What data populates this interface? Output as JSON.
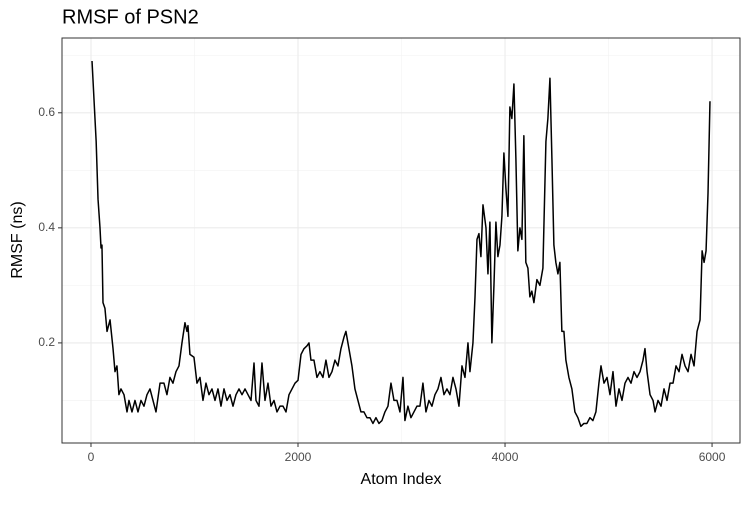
{
  "chart_data": {
    "type": "line",
    "title": "RMSF of PSN2",
    "xlabel": "Atom Index",
    "ylabel": "RMSF (ns)",
    "x": [
      10,
      50,
      68,
      87,
      97,
      106,
      116,
      135,
      155,
      184,
      213,
      232,
      251,
      270,
      290,
      319,
      348,
      367,
      396,
      425,
      454,
      483,
      512,
      541,
      570,
      599,
      628,
      667,
      705,
      734,
      763,
      792,
      821,
      850,
      879,
      908,
      927,
      937,
      956,
      995,
      1024,
      1053,
      1082,
      1111,
      1140,
      1169,
      1198,
      1227,
      1256,
      1285,
      1314,
      1343,
      1372,
      1401,
      1430,
      1459,
      1488,
      1517,
      1546,
      1575,
      1594,
      1623,
      1652,
      1681,
      1710,
      1739,
      1768,
      1797,
      1826,
      1855,
      1884,
      1913,
      1942,
      1971,
      2000,
      2029,
      2058,
      2087,
      2106,
      2125,
      2154,
      2183,
      2212,
      2241,
      2270,
      2299,
      2328,
      2357,
      2386,
      2415,
      2444,
      2463,
      2492,
      2521,
      2550,
      2579,
      2608,
      2637,
      2666,
      2695,
      2724,
      2753,
      2782,
      2811,
      2840,
      2869,
      2898,
      2927,
      2956,
      2985,
      3014,
      3033,
      3062,
      3091,
      3120,
      3149,
      3178,
      3207,
      3236,
      3265,
      3294,
      3323,
      3352,
      3381,
      3410,
      3439,
      3468,
      3497,
      3526,
      3555,
      3584,
      3613,
      3642,
      3661,
      3690,
      3710,
      3729,
      3748,
      3767,
      3787,
      3816,
      3835,
      3854,
      3873,
      3893,
      3912,
      3931,
      3951,
      3970,
      3989,
      4008,
      4028,
      4047,
      4066,
      4086,
      4105,
      4124,
      4144,
      4163,
      4182,
      4201,
      4221,
      4240,
      4259,
      4279,
      4308,
      4337,
      4366,
      4395,
      4414,
      4434,
      4453,
      4472,
      4491,
      4511,
      4530,
      4549,
      4569,
      4588,
      4617,
      4646,
      4675,
      4704,
      4733,
      4762,
      4791,
      4820,
      4849,
      4878,
      4907,
      4927,
      4956,
      4985,
      5014,
      5043,
      5072,
      5101,
      5130,
      5159,
      5188,
      5217,
      5246,
      5275,
      5304,
      5333,
      5352,
      5372,
      5401,
      5430,
      5449,
      5478,
      5507,
      5536,
      5565,
      5594,
      5623,
      5652,
      5681,
      5710,
      5739,
      5768,
      5797,
      5826,
      5855,
      5884,
      5904,
      5923,
      5942,
      5961,
      5980
    ],
    "values": [
      0.69,
      0.55,
      0.45,
      0.4,
      0.365,
      0.37,
      0.27,
      0.26,
      0.22,
      0.24,
      0.19,
      0.15,
      0.16,
      0.11,
      0.12,
      0.11,
      0.08,
      0.1,
      0.08,
      0.1,
      0.08,
      0.1,
      0.09,
      0.11,
      0.12,
      0.1,
      0.08,
      0.13,
      0.13,
      0.11,
      0.14,
      0.13,
      0.15,
      0.16,
      0.2,
      0.235,
      0.22,
      0.23,
      0.18,
      0.175,
      0.13,
      0.14,
      0.1,
      0.13,
      0.11,
      0.12,
      0.1,
      0.12,
      0.09,
      0.12,
      0.1,
      0.11,
      0.09,
      0.11,
      0.12,
      0.11,
      0.12,
      0.11,
      0.1,
      0.165,
      0.1,
      0.09,
      0.165,
      0.1,
      0.13,
      0.09,
      0.1,
      0.08,
      0.09,
      0.09,
      0.08,
      0.11,
      0.12,
      0.13,
      0.135,
      0.18,
      0.19,
      0.195,
      0.2,
      0.17,
      0.17,
      0.14,
      0.15,
      0.14,
      0.17,
      0.14,
      0.15,
      0.17,
      0.16,
      0.19,
      0.21,
      0.22,
      0.19,
      0.16,
      0.12,
      0.1,
      0.08,
      0.08,
      0.07,
      0.07,
      0.06,
      0.07,
      0.06,
      0.065,
      0.08,
      0.09,
      0.13,
      0.1,
      0.1,
      0.08,
      0.14,
      0.065,
      0.09,
      0.07,
      0.08,
      0.09,
      0.09,
      0.13,
      0.08,
      0.1,
      0.09,
      0.11,
      0.12,
      0.14,
      0.11,
      0.12,
      0.11,
      0.14,
      0.12,
      0.09,
      0.16,
      0.14,
      0.2,
      0.15,
      0.2,
      0.28,
      0.38,
      0.39,
      0.35,
      0.44,
      0.4,
      0.32,
      0.41,
      0.2,
      0.3,
      0.41,
      0.35,
      0.37,
      0.42,
      0.53,
      0.47,
      0.42,
      0.61,
      0.59,
      0.65,
      0.52,
      0.36,
      0.4,
      0.38,
      0.56,
      0.34,
      0.33,
      0.28,
      0.29,
      0.27,
      0.31,
      0.3,
      0.33,
      0.55,
      0.59,
      0.66,
      0.52,
      0.37,
      0.34,
      0.32,
      0.34,
      0.22,
      0.22,
      0.17,
      0.14,
      0.12,
      0.08,
      0.07,
      0.055,
      0.06,
      0.06,
      0.07,
      0.065,
      0.08,
      0.13,
      0.16,
      0.13,
      0.14,
      0.11,
      0.15,
      0.09,
      0.12,
      0.1,
      0.13,
      0.14,
      0.13,
      0.15,
      0.14,
      0.15,
      0.17,
      0.19,
      0.15,
      0.11,
      0.1,
      0.08,
      0.1,
      0.09,
      0.12,
      0.1,
      0.13,
      0.13,
      0.16,
      0.15,
      0.18,
      0.16,
      0.15,
      0.18,
      0.16,
      0.22,
      0.24,
      0.36,
      0.34,
      0.36,
      0.46,
      0.62
    ],
    "color": "#000000",
    "xlim": [
      -280,
      6270
    ],
    "ylim": [
      0.026,
      0.73
    ],
    "xticks": [
      0,
      2000,
      4000,
      6000
    ],
    "yticks": [
      0.2,
      0.4,
      0.6
    ],
    "xminor": [
      1000,
      3000,
      5000
    ],
    "yminor": [
      0.1,
      0.3,
      0.5,
      0.7
    ],
    "grid": true
  }
}
